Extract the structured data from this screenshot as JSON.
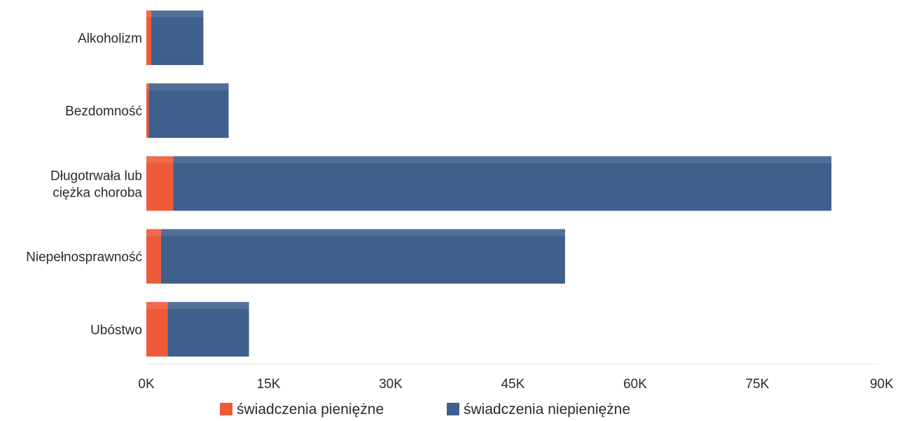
{
  "chart_data": {
    "type": "bar",
    "orientation": "horizontal",
    "stacked": true,
    "categories": [
      [
        "Alkoholizm"
      ],
      [
        "Bezdomność"
      ],
      [
        "Długotrwała lub",
        "ciężka choroba"
      ],
      [
        "Niepełnosprawność"
      ],
      [
        "Ubóstwo"
      ]
    ],
    "series": [
      {
        "name": "świadczenia pieniężne",
        "color": "#ee5a3a",
        "values": [
          600,
          300,
          3300,
          1800,
          2600
        ]
      },
      {
        "name": "świadczenia niepieniężne",
        "color": "#3f5f8c",
        "values": [
          6400,
          9800,
          80800,
          49600,
          10000
        ]
      }
    ],
    "xlim": [
      0,
      90000
    ],
    "x_ticks": [
      {
        "value": 0,
        "label": "0K"
      },
      {
        "value": 15000,
        "label": "15K"
      },
      {
        "value": 30000,
        "label": "30K"
      },
      {
        "value": 45000,
        "label": "45K"
      },
      {
        "value": 60000,
        "label": "60K"
      },
      {
        "value": 75000,
        "label": "75K"
      },
      {
        "value": 90000,
        "label": "90K"
      }
    ],
    "grid": false,
    "legend_position": "bottom"
  }
}
